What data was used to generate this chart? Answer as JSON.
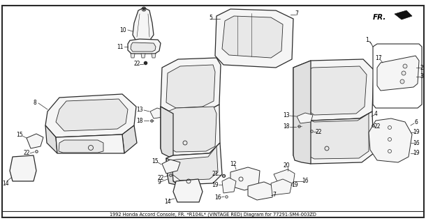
{
  "background_color": "#ffffff",
  "line_color": "#2a2a2a",
  "label_color": "#000000",
  "fig_width": 6.1,
  "fig_height": 3.2,
  "dpi": 100,
  "lw_main": 0.9,
  "lw_detail": 0.6,
  "label_fontsize": 5.5,
  "fr_text": "FR.",
  "title": "1992 Honda Accord Console, FR. *R104L* (VINTAGE RED) Diagram for 77291-SM4-003ZD"
}
